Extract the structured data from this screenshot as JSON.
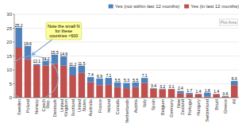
{
  "chart_data": {
    "type": "bar",
    "stacked": true,
    "categories": [
      "Sweden",
      "Poland",
      "Norway",
      "Czech\nRep.",
      "Denmark",
      "United\nKingdom",
      "Scotland",
      "United\nStates",
      "Australia",
      "France",
      "Ireland",
      "Canada",
      "Netherlands",
      "Austria",
      "Italy",
      "Spain",
      "Belgium",
      "Germany",
      "New\nZealand",
      "Portugal",
      "Hungary",
      "Switzerland",
      "Brazil",
      "Greece",
      "All"
    ],
    "series": [
      {
        "name": "Yes (in last 12 months)",
        "color": "#c0504d",
        "values": [
          18.0,
          13.9,
          11.7,
          11.6,
          12.2,
          11.5,
          8.0,
          8.9,
          5.5,
          4.5,
          4.6,
          3.8,
          3.4,
          3.8,
          5.2,
          3.2,
          3.0,
          3.1,
          1.6,
          1.2,
          1.3,
          0.4,
          1.3,
          0.4,
          4.5
        ]
      },
      {
        "name": "Yes (not within last 12 months)",
        "color": "#4f81bd",
        "values": [
          7.2,
          4.7,
          0.4,
          1.6,
          3.3,
          3.4,
          3.2,
          2.6,
          1.9,
          2.4,
          2.5,
          1.7,
          1.9,
          1.7,
          1.9,
          0.2,
          0.2,
          0.0,
          0.8,
          0.5,
          0.1,
          1.4,
          0.1,
          0.2,
          1.5
        ]
      }
    ],
    "totals": [
      25.2,
      18.6,
      12.1,
      13.2,
      15.5,
      14.9,
      11.2,
      11.5,
      7.4,
      6.9,
      7.1,
      5.5,
      5.3,
      5.5,
      7.1,
      3.4,
      3.2,
      3.1,
      2.4,
      1.7,
      1.4,
      1.8,
      1.4,
      0.6,
      6.0
    ],
    "total_labels": [
      "25.2",
      "18.6",
      "12.1",
      "13.2",
      "15.5",
      "14.9",
      "11.2",
      "11.5",
      "7.4",
      "6.9",
      "7.1",
      "5.5",
      "5.3",
      "5.5",
      "7.1",
      "3.4",
      "3.2",
      "3.1",
      "2.4",
      "1.7",
      "1.4",
      "1.8",
      "1.4",
      "0.6",
      "6.0"
    ],
    "ylim": [
      0,
      30
    ],
    "yticks": [
      0,
      5,
      10,
      15,
      20,
      25,
      30
    ],
    "grid": true,
    "legend": "upper right",
    "annotations": [
      {
        "text": "Note the small N\nfor these\ncountries <600",
        "x": 5.0,
        "y": 24.0,
        "arrow_x": 1.5,
        "arrow_y": 15.5
      },
      {
        "text": "Plot Area"
      }
    ],
    "highlight": {
      "x": 1.5,
      "y": 7.0,
      "width": 5.8,
      "height": 16.0
    }
  }
}
